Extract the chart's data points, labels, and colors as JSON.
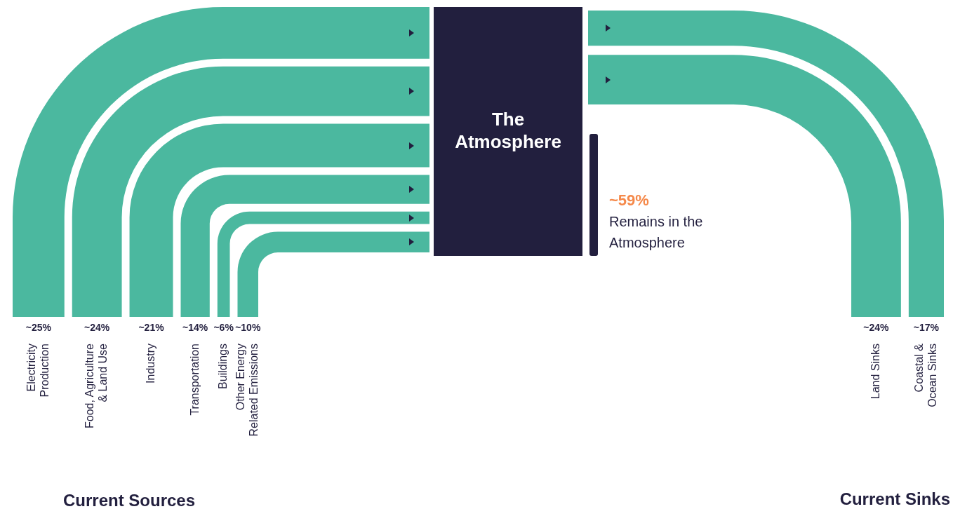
{
  "chart_data": {
    "type": "other",
    "categories": [
      "Electricity Production",
      "Food, Agriculture & Land Use",
      "Industry",
      "Transportation",
      "Buildings",
      "Other Energy Related Emissions",
      "Land Sinks",
      "Coastal & Ocean Sinks",
      "Remains in the Atmosphere"
    ],
    "series": [
      {
        "name": "Current Sources",
        "values": [
          25,
          24,
          21,
          14,
          6,
          10,
          null,
          null,
          null
        ],
        "value_labels": [
          "~25%",
          "~24%",
          "~21%",
          "~14%",
          "~6%",
          "~10%",
          null,
          null,
          null
        ]
      },
      {
        "name": "Current Sinks",
        "values": [
          null,
          null,
          null,
          null,
          null,
          null,
          24,
          17,
          null
        ],
        "value_labels": [
          null,
          null,
          null,
          null,
          null,
          null,
          "~24%",
          "~17%",
          null
        ]
      },
      {
        "type": "bar",
        "color": "#221f3e",
        "values": [
          null,
          null,
          null,
          null,
          null,
          null,
          null,
          null,
          59
        ],
        "value_labels": [
          null,
          null,
          null,
          null,
          null,
          null,
          null,
          null,
          "~59%"
        ]
      }
    ],
    "annotations": [
      "The Atmosphere"
    ]
  }
}
